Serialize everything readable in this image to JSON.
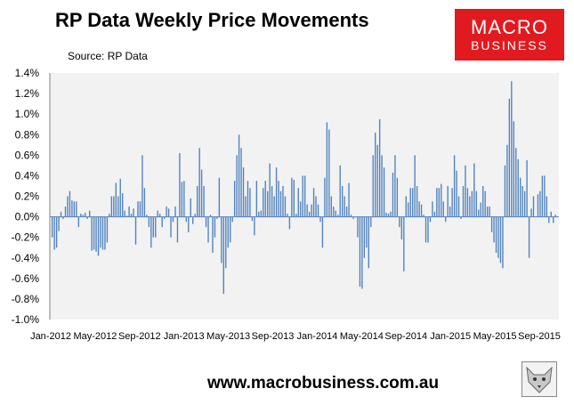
{
  "header": {
    "title": "RP Data Weekly Price Movements",
    "source": "Source: RP Data"
  },
  "logo": {
    "line1": "MACRO",
    "line2": "BUSINESS"
  },
  "footer": {
    "url": "www.macrobusiness.com.au"
  },
  "colors": {
    "bar": "#4f81bd",
    "plot_bg": "#f2f2f2",
    "logo_bg": "#e11a1f"
  },
  "chart_data": {
    "type": "bar",
    "title": "RP Data Weekly Price Movements",
    "ylim": [
      -1.0,
      1.4
    ],
    "yticks": [
      "-1.0%",
      "-0.8%",
      "-0.6%",
      "-0.4%",
      "-0.2%",
      "0.0%",
      "0.2%",
      "0.4%",
      "0.6%",
      "0.8%",
      "1.0%",
      "1.2%",
      "1.4%"
    ],
    "xticks": [
      "Jan-2012",
      "May-2012",
      "Sep-2012",
      "Jan-2013",
      "May-2013",
      "Sep-2013",
      "Jan-2014",
      "May-2014",
      "Sep-2014",
      "Jan-2015",
      "May-2015",
      "Sep-2015"
    ],
    "grid": false,
    "legend": "none",
    "values": [
      -0.2,
      -0.32,
      -0.3,
      -0.14,
      0.05,
      -0.02,
      0.1,
      0.2,
      0.25,
      0.16,
      0.15,
      0.15,
      -0.1,
      0.03,
      0.02,
      0.04,
      -0.02,
      0.06,
      -0.33,
      -0.32,
      -0.34,
      -0.38,
      -0.3,
      -0.32,
      -0.32,
      -0.25,
      0.03,
      0.2,
      0.2,
      0.33,
      0.2,
      0.37,
      0.23,
      0.06,
      0.01,
      0.1,
      0.03,
      0.08,
      -0.27,
      0.15,
      0.15,
      0.6,
      0.28,
      0.02,
      -0.1,
      -0.3,
      -0.2,
      -0.2,
      0.06,
      0.03,
      -0.1,
      -0.02,
      0.1,
      0.08,
      -0.2,
      -0.05,
      0.1,
      -0.25,
      0.62,
      0.34,
      0.35,
      -0.05,
      -0.15,
      0.18,
      -0.07,
      0.03,
      0.3,
      0.67,
      0.46,
      0.3,
      -0.1,
      -0.25,
      0.02,
      -0.35,
      -0.2,
      -0.02,
      0.38,
      -0.45,
      -0.75,
      -0.5,
      -0.3,
      -0.25,
      -0.05,
      0.35,
      0.6,
      0.8,
      0.67,
      0.48,
      0.2,
      0.35,
      0.28,
      -0.04,
      -0.18,
      0.35,
      0.05,
      0.06,
      0.28,
      0.35,
      0.25,
      0.52,
      0.3,
      0.2,
      0.48,
      0.35,
      0.25,
      0.3,
      0.2,
      0.03,
      -0.12,
      0.38,
      0.36,
      0.03,
      0.28,
      0.15,
      0.4,
      0.4,
      0.12,
      0.05,
      0.12,
      0.28,
      0.2,
      0.12,
      -0.05,
      -0.3,
      0.38,
      0.92,
      0.85,
      0.2,
      0.1,
      0.06,
      0.02,
      0.5,
      0.3,
      0.2,
      0.1,
      0.33,
      0.02,
      -0.02,
      0.0,
      -0.2,
      -0.68,
      -0.7,
      -0.4,
      -0.3,
      -0.5,
      -0.1,
      0.6,
      0.82,
      0.7,
      0.95,
      0.6,
      0.48,
      0.04,
      0.03,
      0.05,
      0.43,
      0.6,
      0.38,
      -0.1,
      -0.22,
      -0.53,
      0.2,
      0.14,
      0.28,
      0.28,
      0.6,
      0.3,
      0.15,
      0.12,
      0.02,
      -0.25,
      -0.25,
      -0.05,
      0.15,
      0.05,
      0.28,
      0.28,
      0.32,
      0.15,
      -0.05,
      0.3,
      0.1,
      0.28,
      0.6,
      0.45,
      0.2,
      -0.02,
      0.3,
      0.5,
      0.28,
      0.2,
      0.25,
      0.52,
      0.25,
      0.07,
      0.14,
      0.3,
      0.25,
      0.1,
      0.1,
      -0.15,
      -0.25,
      -0.35,
      -0.4,
      -0.45,
      -0.5,
      0.5,
      0.7,
      1.15,
      1.32,
      0.93,
      0.67,
      0.56,
      0.38,
      0.3,
      0.25,
      0.55,
      -0.4,
      0.08,
      0.2,
      0.0,
      0.22,
      0.25,
      0.4,
      0.4,
      0.2,
      -0.06,
      0.05,
      -0.06,
      0.02
    ]
  }
}
